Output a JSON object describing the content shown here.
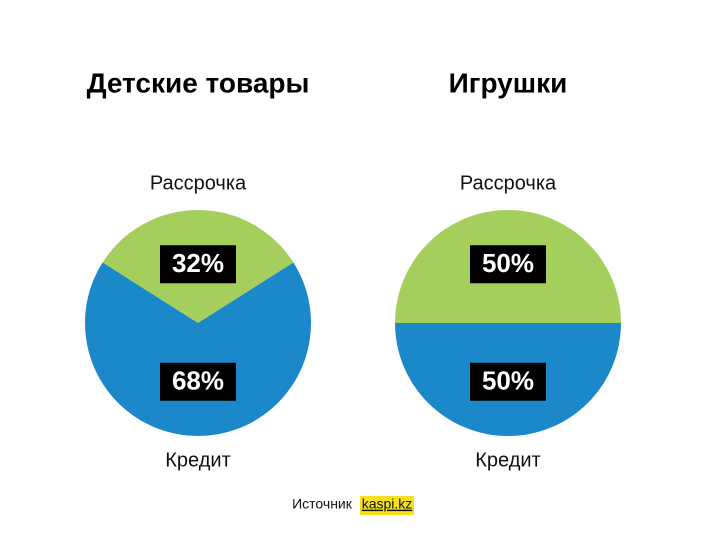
{
  "chart_data": [
    {
      "type": "pie",
      "title": "Детские товары",
      "categories": [
        "Рассрочка",
        "Кредит"
      ],
      "values": [
        32,
        68
      ],
      "value_labels": [
        "32%",
        "68%"
      ],
      "colors": [
        "#a5cf5c",
        "#1a88c9"
      ]
    },
    {
      "type": "pie",
      "title": "Игрушки",
      "categories": [
        "Рассрочка",
        "Кредит"
      ],
      "values": [
        50,
        50
      ],
      "value_labels": [
        "50%",
        "50%"
      ],
      "colors": [
        "#a5cf5c",
        "#1a88c9"
      ]
    }
  ],
  "source": {
    "label": "Источник",
    "name": "kaspi.kz"
  }
}
